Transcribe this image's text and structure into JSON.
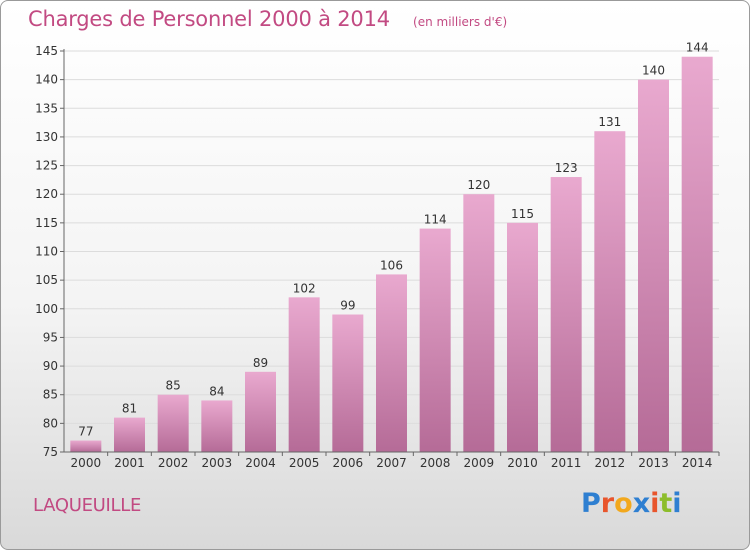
{
  "title": "Charges de Personnel 2000 à 2014",
  "subtitle": "(en milliers d'€)",
  "commune": "LAQUEUILLE",
  "logo": {
    "text": "Proxiti",
    "letter_colors": [
      "#2e7fd1",
      "#e8552c",
      "#f2a81d",
      "#2e7fd1",
      "#e8552c",
      "#8dbd2c",
      "#2e7fd1"
    ]
  },
  "colors": {
    "bar_top": "#e9a9cf",
    "bar_bottom": "#b56b97",
    "title": "#c24a82",
    "axis_text": "#333333"
  },
  "chart_data": {
    "type": "bar",
    "title": "Charges de Personnel 2000 à 2014",
    "subtitle": "(en milliers d'€)",
    "categories": [
      "2000",
      "2001",
      "2002",
      "2003",
      "2004",
      "2005",
      "2006",
      "2007",
      "2008",
      "2009",
      "2010",
      "2011",
      "2012",
      "2013",
      "2014"
    ],
    "values": [
      77,
      81,
      85,
      84,
      89,
      102,
      99,
      106,
      114,
      120,
      115,
      123,
      131,
      140,
      144
    ],
    "ylim": [
      75,
      145
    ],
    "yticks": [
      75,
      80,
      85,
      90,
      95,
      100,
      105,
      110,
      115,
      120,
      125,
      130,
      135,
      140,
      145
    ],
    "grid": true
  }
}
